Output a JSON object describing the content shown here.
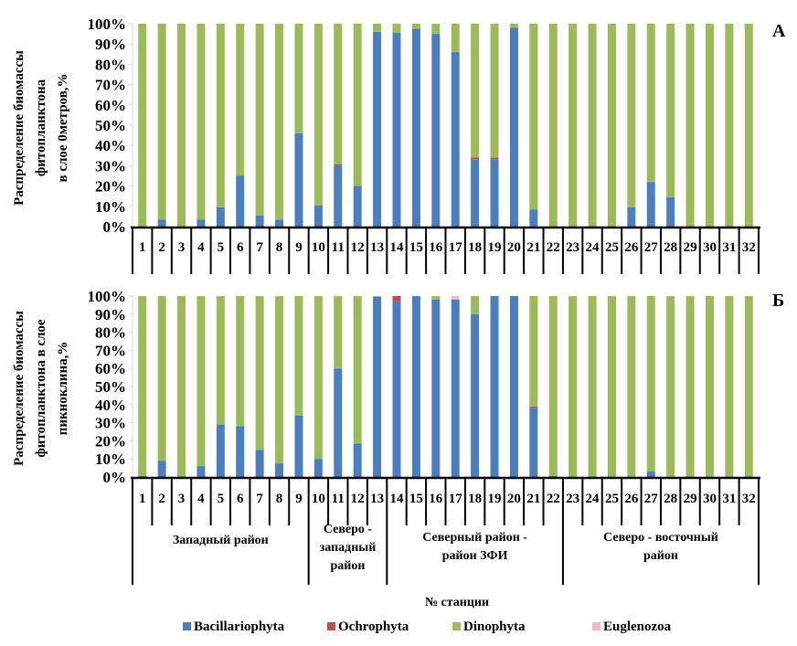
{
  "colors": {
    "Bacillariophyta": "#4a7ebf",
    "Ochrophyta": "#c0504d",
    "Dinophyta": "#9bbb59",
    "Euglenozoa": "#f4b6c8"
  },
  "chart_data": [
    {
      "type": "bar",
      "stacked": true,
      "panel_label": "А",
      "ylabel_lines": [
        "Распределение биомассы",
        "фитопланктона",
        "в слое 0метров,%"
      ],
      "ylim": [
        0,
        100
      ],
      "yticks": [
        "0%",
        "10%",
        "20%",
        "30%",
        "40%",
        "50%",
        "60%",
        "70%",
        "80%",
        "90%",
        "100%"
      ],
      "categories": [
        "1",
        "2",
        "3",
        "4",
        "5",
        "6",
        "7",
        "8",
        "9",
        "10",
        "11",
        "12",
        "13",
        "14",
        "15",
        "16",
        "17",
        "18",
        "19",
        "20",
        "21",
        "22",
        "23",
        "24",
        "25",
        "26",
        "27",
        "28",
        "29",
        "30",
        "31",
        "32"
      ],
      "group_boundaries_after": [
        9,
        13,
        22
      ],
      "series": [
        {
          "name": "Bacillariophyta",
          "values": [
            0,
            3.5,
            0,
            3.5,
            9.5,
            25,
            5.5,
            3.5,
            46,
            10.5,
            30,
            20,
            96,
            95.5,
            97.5,
            95,
            86,
            33,
            33,
            98,
            8.5,
            0,
            0,
            0,
            0,
            9.5,
            22,
            14.5,
            0,
            0,
            0,
            0
          ]
        },
        {
          "name": "Ochrophyta",
          "values": [
            0,
            0,
            0,
            0,
            0,
            0,
            0,
            0,
            0,
            0,
            0.8,
            0,
            0,
            0,
            0,
            0,
            0,
            1,
            1,
            0,
            0,
            0,
            0,
            0,
            0,
            0,
            0,
            0,
            0,
            0,
            0,
            0
          ]
        },
        {
          "name": "Dinophyta",
          "values": [
            100,
            96.5,
            100,
            96.5,
            90.5,
            75,
            94.5,
            96.5,
            54,
            89.5,
            69.2,
            80,
            4,
            4.5,
            2.5,
            5,
            14,
            66,
            66,
            2,
            91.5,
            100,
            100,
            100,
            100,
            90.5,
            78,
            85.5,
            100,
            100,
            100,
            100
          ]
        },
        {
          "name": "Euglenozoa",
          "values": [
            0,
            0,
            0,
            0,
            0,
            0,
            0,
            0,
            0,
            0,
            0,
            0,
            0,
            0,
            0,
            0,
            0,
            0,
            0,
            0,
            0,
            0,
            0,
            0,
            0,
            0,
            0,
            0,
            0,
            0,
            0,
            0
          ]
        }
      ]
    },
    {
      "type": "bar",
      "stacked": true,
      "panel_label": "Б",
      "ylabel_lines": [
        "Распределение биомассы",
        "фитопланктона в слое",
        "пикноклина,%"
      ],
      "ylim": [
        0,
        100
      ],
      "yticks": [
        "0%",
        "10%",
        "20%",
        "30%",
        "40%",
        "50%",
        "60%",
        "70%",
        "80%",
        "90%",
        "100%"
      ],
      "categories": [
        "1",
        "2",
        "3",
        "4",
        "5",
        "6",
        "7",
        "8",
        "9",
        "10",
        "11",
        "12",
        "13",
        "14",
        "15",
        "16",
        "17",
        "18",
        "19",
        "20",
        "21",
        "22",
        "23",
        "24",
        "25",
        "26",
        "27",
        "28",
        "29",
        "30",
        "31",
        "32"
      ],
      "group_boundaries_after": [
        9,
        13,
        22
      ],
      "groups": [
        {
          "label_lines": [
            "Западный район"
          ],
          "from": 1,
          "to": 9
        },
        {
          "label_lines": [
            "Северо -",
            "западный",
            "район"
          ],
          "from": 10,
          "to": 13
        },
        {
          "label_lines": [
            "Северный район -",
            "район ЗФИ"
          ],
          "from": 14,
          "to": 22
        },
        {
          "label_lines": [
            "Северо - восточный",
            "район"
          ],
          "from": 23,
          "to": 32
        }
      ],
      "xlabel": "№ станции",
      "series": [
        {
          "name": "Bacillariophyta",
          "values": [
            0.5,
            9,
            0,
            6,
            29,
            28,
            15,
            7.5,
            34,
            10,
            60,
            18.5,
            99.5,
            97,
            100,
            98,
            98,
            90,
            100,
            100,
            38,
            0.5,
            0,
            0,
            0,
            0,
            3,
            0,
            0,
            0,
            0,
            0
          ]
        },
        {
          "name": "Ochrophyta",
          "values": [
            0,
            0,
            0,
            0,
            0,
            0,
            0,
            0,
            0,
            0,
            0,
            0,
            0,
            3,
            0,
            0,
            0,
            0,
            0,
            0,
            1,
            0,
            0,
            0,
            0,
            0,
            0,
            0,
            0,
            0,
            0,
            0
          ]
        },
        {
          "name": "Dinophyta",
          "values": [
            99.5,
            91,
            100,
            94,
            71,
            72,
            85,
            92.5,
            66,
            90,
            40,
            81.5,
            0.5,
            0,
            0,
            2,
            0,
            10,
            0,
            0,
            61,
            99.5,
            100,
            100,
            100,
            100,
            97,
            100,
            100,
            100,
            100,
            100
          ]
        },
        {
          "name": "Euglenozoa",
          "values": [
            0,
            0,
            0,
            0,
            0,
            0,
            0,
            0,
            0,
            0,
            0,
            0,
            0,
            0,
            0,
            0,
            2,
            0,
            0,
            0,
            0,
            0,
            0,
            0,
            0,
            0,
            0,
            0,
            0,
            0,
            0,
            0
          ]
        }
      ]
    }
  ],
  "legend": {
    "position": "bottom",
    "items": [
      "Bacillariophyta",
      "Ochrophyta",
      "Dinophyta",
      "Euglenozoa"
    ]
  }
}
